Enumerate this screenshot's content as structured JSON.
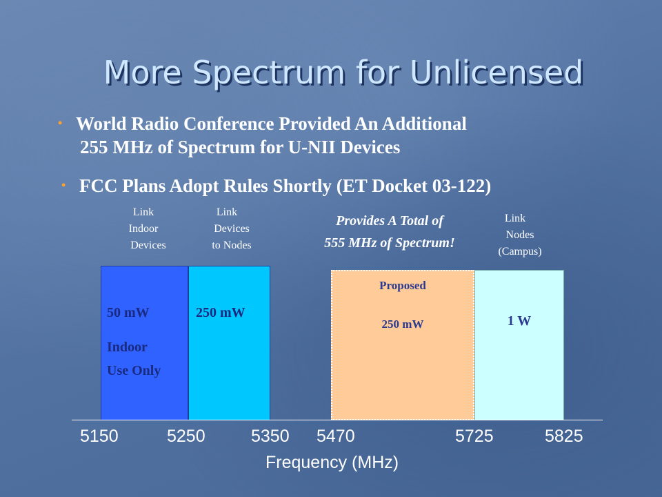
{
  "title": "More Spectrum for Unlicensed",
  "bullets": [
    {
      "line1": "World Radio Conference Provided An Additional",
      "line2": "255 MHz of Spectrum for U-NII Devices"
    },
    {
      "line1": "FCC Plans Adopt Rules Shortly (ET Docket 03-122)"
    }
  ],
  "colors": {
    "bullet": "#ffa030",
    "band1": "#2f62ff",
    "band2": "#00c8ff",
    "band3": "#ffcc99",
    "band4": "#ccffff"
  },
  "band_captions": {
    "b1": [
      "Link",
      "Indoor",
      "Devices"
    ],
    "b2": [
      "Link",
      "Devices",
      "to Nodes"
    ],
    "b4": [
      "Link",
      "Nodes",
      "(Campus)"
    ]
  },
  "total_note": [
    "Provides A Total of",
    "555 MHz of Spectrum!"
  ],
  "bands": {
    "b1": {
      "power": "50 mW",
      "note1": "Indoor",
      "note2": "Use Only"
    },
    "b2": {
      "power": "250 mW"
    },
    "b3": {
      "status": "Proposed",
      "power": "250 mW"
    },
    "b4": {
      "power": "1 W"
    }
  },
  "axis": {
    "ticks": [
      "5150",
      "5250",
      "5350",
      "5470",
      "5725",
      "5825"
    ],
    "label": "Frequency (MHz)"
  }
}
